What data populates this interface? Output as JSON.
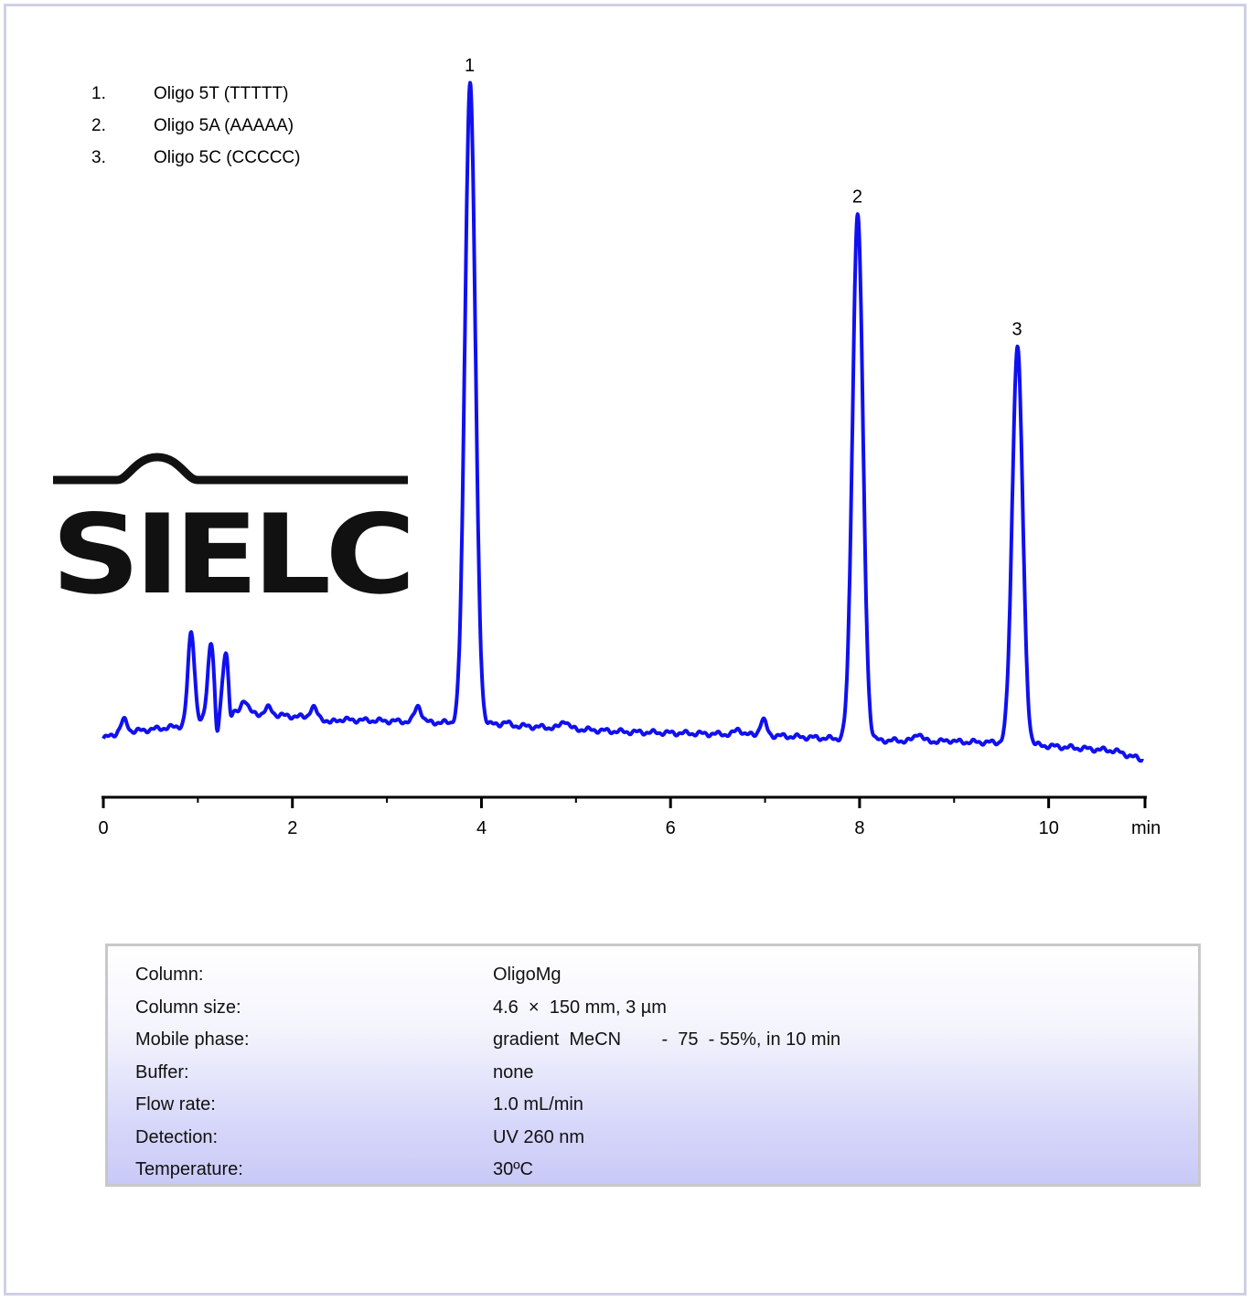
{
  "legend": {
    "items": [
      {
        "num": "1.",
        "name": "Oligo 5T (TTTTT)"
      },
      {
        "num": "2.",
        "name": "Oligo 5A (AAAAA)"
      },
      {
        "num": "3.",
        "name": "Oligo 5C (CCCCC)"
      }
    ]
  },
  "logo": {
    "text": "SIELC"
  },
  "chart_data": {
    "type": "line",
    "title": "",
    "xlabel": "min",
    "ylabel": "",
    "xlim": [
      0,
      11
    ],
    "ylim": [
      -0.05,
      1.0
    ],
    "xticks": [
      0,
      2,
      4,
      6,
      8,
      10
    ],
    "xtick_labels": [
      "0",
      "2",
      "4",
      "6",
      "8",
      "10"
    ],
    "grid": false,
    "line_color": "#1010f0",
    "baseline": {
      "points": [
        [
          0,
          0.03
        ],
        [
          0.15,
          0.038
        ],
        [
          0.8,
          0.048
        ],
        [
          1.5,
          0.068
        ],
        [
          2.5,
          0.058
        ],
        [
          4.0,
          0.052
        ],
        [
          5.5,
          0.04
        ],
        [
          7.0,
          0.035
        ],
        [
          8.0,
          0.028
        ],
        [
          9.5,
          0.024
        ],
        [
          10.7,
          0.012
        ],
        [
          11.0,
          -0.002
        ]
      ]
    },
    "peaks": [
      {
        "label": "1",
        "x": 3.88,
        "y": 1.0,
        "name": "Oligo 5T (TTTTT)"
      },
      {
        "label": "2",
        "x": 7.98,
        "y": 0.806,
        "name": "Oligo 5A (AAAAA)"
      },
      {
        "label": "3",
        "x": 9.67,
        "y": 0.61,
        "name": "Oligo 5C (CCCCC)"
      }
    ],
    "minor_peaks": [
      {
        "x": 0.22,
        "h": 0.018
      },
      {
        "x": 0.93,
        "h": 0.135
      },
      {
        "x": 1.14,
        "h": 0.115
      },
      {
        "x": 1.3,
        "h": 0.1
      },
      {
        "x": 1.49,
        "h": 0.02
      },
      {
        "x": 1.75,
        "h": 0.01
      },
      {
        "x": 2.22,
        "h": 0.015
      },
      {
        "x": 2.4,
        "h": -0.006
      },
      {
        "x": 3.33,
        "h": 0.024
      },
      {
        "x": 4.25,
        "h": 0.004
      },
      {
        "x": 4.88,
        "h": 0.012
      },
      {
        "x": 6.72,
        "h": 0.008
      },
      {
        "x": 6.98,
        "h": 0.022
      },
      {
        "x": 8.62,
        "h": 0.012
      },
      {
        "x": 8.95,
        "h": 0.002
      }
    ],
    "dips": [
      {
        "x": 1.2,
        "h": -0.045
      },
      {
        "x": 1.34,
        "h": -0.04
      }
    ]
  },
  "conditions": [
    {
      "label": "Column:",
      "value": "OligoMg"
    },
    {
      "label": "Column size:",
      "value": "4.6  ×  150 mm, 3 µm"
    },
    {
      "label": "Mobile phase:",
      "value": "gradient  MeCN        -  75  - 55%, in 10 min"
    },
    {
      "label": "Buffer:",
      "value": "none"
    },
    {
      "label": "Flow rate:",
      "value": "1.0 mL/min"
    },
    {
      "label": "Detection:",
      "value": "UV 260 nm"
    },
    {
      "label": "Temperature:",
      "value": "30ºC"
    }
  ]
}
